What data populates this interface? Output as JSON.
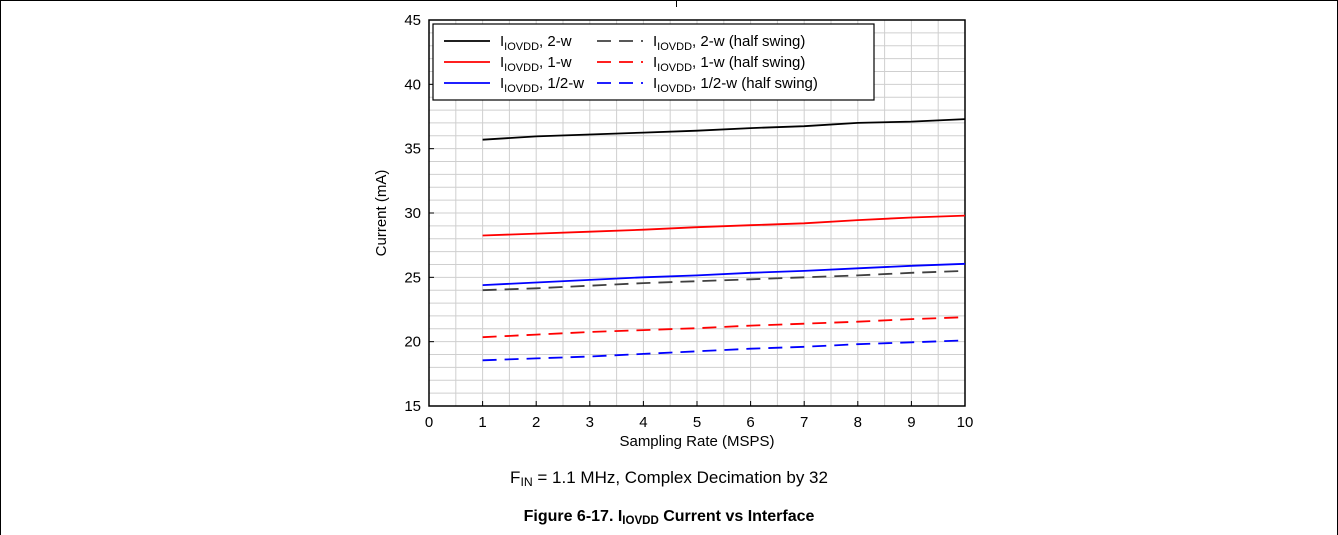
{
  "chart_data": {
    "type": "line",
    "xlabel": "Sampling Rate (MSPS)",
    "ylabel": "Current (mA)",
    "xlim": [
      0,
      10
    ],
    "ylim": [
      15,
      45
    ],
    "x_ticks": [
      "0",
      "1",
      "2",
      "3",
      "4",
      "5",
      "6",
      "7",
      "8",
      "9",
      "10"
    ],
    "y_ticks": [
      "15",
      "20",
      "25",
      "30",
      "35",
      "40",
      "45"
    ],
    "grid": true,
    "legend_position": "top-left",
    "x": [
      1,
      2,
      3,
      4,
      5,
      6,
      7,
      8,
      9,
      10
    ],
    "series": [
      {
        "name_main": "I",
        "name_sub": "IOVDD",
        "name_rest": ", 2-w",
        "color": "#000000",
        "dash": "solid",
        "values": [
          35.7,
          35.95,
          36.1,
          36.25,
          36.4,
          36.6,
          36.75,
          37.0,
          37.1,
          37.3
        ]
      },
      {
        "name_main": "I",
        "name_sub": "IOVDD",
        "name_rest": ", 1-w",
        "color": "#ff0000",
        "dash": "solid",
        "values": [
          28.25,
          28.4,
          28.55,
          28.7,
          28.9,
          29.05,
          29.2,
          29.45,
          29.65,
          29.8
        ]
      },
      {
        "name_main": "I",
        "name_sub": "IOVDD",
        "name_rest": ", 1/2-w",
        "color": "#0000ff",
        "dash": "solid",
        "values": [
          24.4,
          24.6,
          24.8,
          25.0,
          25.15,
          25.35,
          25.5,
          25.7,
          25.9,
          26.05
        ]
      },
      {
        "name_main": "I",
        "name_sub": "IOVDD",
        "name_rest": ", 2-w (half swing)",
        "color": "#404040",
        "dash": "dashed",
        "values": [
          24.0,
          24.15,
          24.35,
          24.55,
          24.7,
          24.85,
          25.0,
          25.15,
          25.35,
          25.5
        ]
      },
      {
        "name_main": "I",
        "name_sub": "IOVDD",
        "name_rest": ", 1-w (half swing)",
        "color": "#ff0000",
        "dash": "dashed",
        "values": [
          20.35,
          20.55,
          20.75,
          20.9,
          21.05,
          21.25,
          21.4,
          21.55,
          21.75,
          21.9
        ]
      },
      {
        "name_main": "I",
        "name_sub": "IOVDD",
        "name_rest": ", 1/2-w (half swing)",
        "color": "#0000ff",
        "dash": "dashed",
        "values": [
          18.55,
          18.7,
          18.85,
          19.05,
          19.25,
          19.45,
          19.6,
          19.8,
          19.95,
          20.1
        ]
      }
    ]
  },
  "condition": {
    "f_main": "F",
    "f_sub": "IN",
    "text": " = 1.1 MHz, Complex Decimation by 32"
  },
  "caption": {
    "prefix": "Figure 6-17. I",
    "sub": "IOVDD",
    "suffix": " Current vs Interface"
  }
}
